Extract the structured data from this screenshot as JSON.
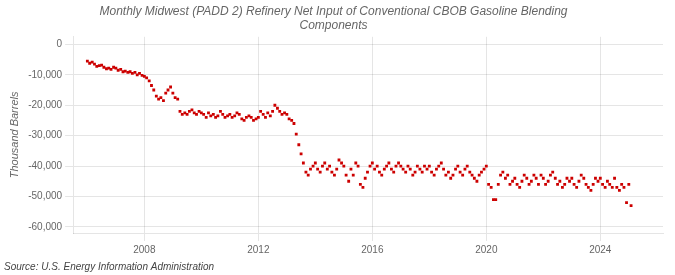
{
  "chart_data": {
    "type": "scatter",
    "title": "Monthly Midwest (PADD 2) Refinery Net Input of Conventional CBOB Gasoline Blending\nComponents",
    "ylabel": "Thousand Barrels",
    "source": "Source: U.S. Energy Information Administration",
    "color": "#cc0000",
    "marker": "square",
    "grid": true,
    "xlim": [
      2005.5,
      2026.2
    ],
    "ylim": [
      -62000,
      2500
    ],
    "xticks": [
      2008,
      2012,
      2016,
      2020,
      2024
    ],
    "yticks": [
      {
        "value": 0,
        "label": "0"
      },
      {
        "value": -10000,
        "label": "-10,000"
      },
      {
        "value": -20000,
        "label": "-20,000"
      },
      {
        "value": -30000,
        "label": "-30,000"
      },
      {
        "value": -40000,
        "label": "-40,000"
      },
      {
        "value": -50000,
        "label": "-50,000"
      },
      {
        "value": -60000,
        "label": "-60,000"
      }
    ],
    "x": [
      2006.0,
      2006.08,
      2006.17,
      2006.25,
      2006.33,
      2006.42,
      2006.5,
      2006.58,
      2006.67,
      2006.75,
      2006.83,
      2006.92,
      2007.0,
      2007.08,
      2007.17,
      2007.25,
      2007.33,
      2007.42,
      2007.5,
      2007.58,
      2007.67,
      2007.75,
      2007.83,
      2007.92,
      2008.0,
      2008.08,
      2008.17,
      2008.25,
      2008.33,
      2008.42,
      2008.5,
      2008.58,
      2008.67,
      2008.75,
      2008.83,
      2008.92,
      2009.0,
      2009.08,
      2009.17,
      2009.25,
      2009.33,
      2009.42,
      2009.5,
      2009.58,
      2009.67,
      2009.75,
      2009.83,
      2009.92,
      2010.0,
      2010.08,
      2010.17,
      2010.25,
      2010.33,
      2010.42,
      2010.5,
      2010.58,
      2010.67,
      2010.75,
      2010.83,
      2010.92,
      2011.0,
      2011.08,
      2011.17,
      2011.25,
      2011.33,
      2011.42,
      2011.5,
      2011.58,
      2011.67,
      2011.75,
      2011.83,
      2011.92,
      2012.0,
      2012.08,
      2012.17,
      2012.25,
      2012.33,
      2012.42,
      2012.5,
      2012.58,
      2012.67,
      2012.75,
      2012.83,
      2012.92,
      2013.0,
      2013.08,
      2013.17,
      2013.25,
      2013.33,
      2013.42,
      2013.5,
      2013.58,
      2013.67,
      2013.75,
      2013.83,
      2013.92,
      2014.0,
      2014.08,
      2014.17,
      2014.25,
      2014.33,
      2014.42,
      2014.5,
      2014.58,
      2014.67,
      2014.75,
      2014.83,
      2014.92,
      2015.0,
      2015.08,
      2015.17,
      2015.25,
      2015.33,
      2015.42,
      2015.5,
      2015.58,
      2015.67,
      2015.75,
      2015.83,
      2015.92,
      2016.0,
      2016.08,
      2016.17,
      2016.25,
      2016.33,
      2016.42,
      2016.5,
      2016.58,
      2016.67,
      2016.75,
      2016.83,
      2016.92,
      2017.0,
      2017.08,
      2017.17,
      2017.25,
      2017.33,
      2017.42,
      2017.5,
      2017.58,
      2017.67,
      2017.75,
      2017.83,
      2017.92,
      2018.0,
      2018.08,
      2018.17,
      2018.25,
      2018.33,
      2018.42,
      2018.5,
      2018.58,
      2018.67,
      2018.75,
      2018.83,
      2018.92,
      2019.0,
      2019.08,
      2019.17,
      2019.25,
      2019.33,
      2019.42,
      2019.5,
      2019.58,
      2019.67,
      2019.75,
      2019.83,
      2019.92,
      2020.0,
      2020.08,
      2020.17,
      2020.25,
      2020.33,
      2020.42,
      2020.5,
      2020.58,
      2020.67,
      2020.75,
      2020.83,
      2020.92,
      2021.0,
      2021.08,
      2021.17,
      2021.25,
      2021.33,
      2021.42,
      2021.5,
      2021.58,
      2021.67,
      2021.75,
      2021.83,
      2021.92,
      2022.0,
      2022.08,
      2022.17,
      2022.25,
      2022.33,
      2022.42,
      2022.5,
      2022.58,
      2022.67,
      2022.75,
      2022.83,
      2022.92,
      2023.0,
      2023.08,
      2023.17,
      2023.25,
      2023.33,
      2023.42,
      2023.5,
      2023.58,
      2023.67,
      2023.75,
      2023.83,
      2023.92,
      2024.0,
      2024.08,
      2024.17,
      2024.25,
      2024.33,
      2024.42,
      2024.5,
      2024.58,
      2024.67,
      2024.75,
      2024.83,
      2024.92,
      2025.0,
      2025.08
    ],
    "values": [
      -5500,
      -6200,
      -5800,
      -6500,
      -7200,
      -7000,
      -6800,
      -7500,
      -8000,
      -7800,
      -8200,
      -7500,
      -7800,
      -8500,
      -8200,
      -9000,
      -8800,
      -9200,
      -9000,
      -9500,
      -9200,
      -10000,
      -9500,
      -10200,
      -10500,
      -11000,
      -12000,
      -13500,
      -15000,
      -17000,
      -18000,
      -17500,
      -18500,
      -16000,
      -15000,
      -14000,
      -16000,
      -17500,
      -18000,
      -22000,
      -23000,
      -22500,
      -23000,
      -22000,
      -21500,
      -22500,
      -23000,
      -22000,
      -22500,
      -23000,
      -24000,
      -22500,
      -23500,
      -23000,
      -24000,
      -23500,
      -22000,
      -23000,
      -24000,
      -23500,
      -23000,
      -24000,
      -23500,
      -22500,
      -23000,
      -24500,
      -25000,
      -24000,
      -23500,
      -24000,
      -25000,
      -24500,
      -24000,
      -22000,
      -23000,
      -24000,
      -22500,
      -23500,
      -22000,
      -20000,
      -21000,
      -22000,
      -23000,
      -22500,
      -23000,
      -24500,
      -25000,
      -26000,
      -29500,
      -33000,
      -36000,
      -39000,
      -42000,
      -43000,
      -41000,
      -40000,
      -39000,
      -41000,
      -42000,
      -40000,
      -39000,
      -41000,
      -40000,
      -42000,
      -43000,
      -41000,
      -38000,
      -39000,
      -40000,
      -43000,
      -45000,
      -41000,
      -43000,
      -39000,
      -40000,
      -46000,
      -47000,
      -44000,
      -42000,
      -40000,
      -39000,
      -41000,
      -40000,
      -42000,
      -43000,
      -41000,
      -40000,
      -39000,
      -41000,
      -42000,
      -40000,
      -39000,
      -40000,
      -41000,
      -42000,
      -40000,
      -41000,
      -43000,
      -42000,
      -40000,
      -41000,
      -42000,
      -40000,
      -41000,
      -40000,
      -42000,
      -43000,
      -41000,
      -40000,
      -39000,
      -41000,
      -43000,
      -42000,
      -44000,
      -43000,
      -41000,
      -40000,
      -42000,
      -43000,
      -41000,
      -40000,
      -42000,
      -43000,
      -44000,
      -45000,
      -43000,
      -42000,
      -41000,
      -40000,
      -46000,
      -47000,
      -51000,
      -51000,
      -46000,
      -43000,
      -42000,
      -44000,
      -43000,
      -46000,
      -45000,
      -44000,
      -46000,
      -47000,
      -45000,
      -43000,
      -44000,
      -46000,
      -45000,
      -43000,
      -44000,
      -46000,
      -43000,
      -44000,
      -46000,
      -45000,
      -43000,
      -42000,
      -44000,
      -46000,
      -45000,
      -47000,
      -46000,
      -44000,
      -45000,
      -44000,
      -46000,
      -47000,
      -45000,
      -43000,
      -44000,
      -46000,
      -47000,
      -48000,
      -46000,
      -44000,
      -45000,
      -44000,
      -46000,
      -47000,
      -45000,
      -46000,
      -47000,
      -44000,
      -47000,
      -48000,
      -46000,
      -47000,
      -52000,
      -46000,
      -53000
    ]
  }
}
